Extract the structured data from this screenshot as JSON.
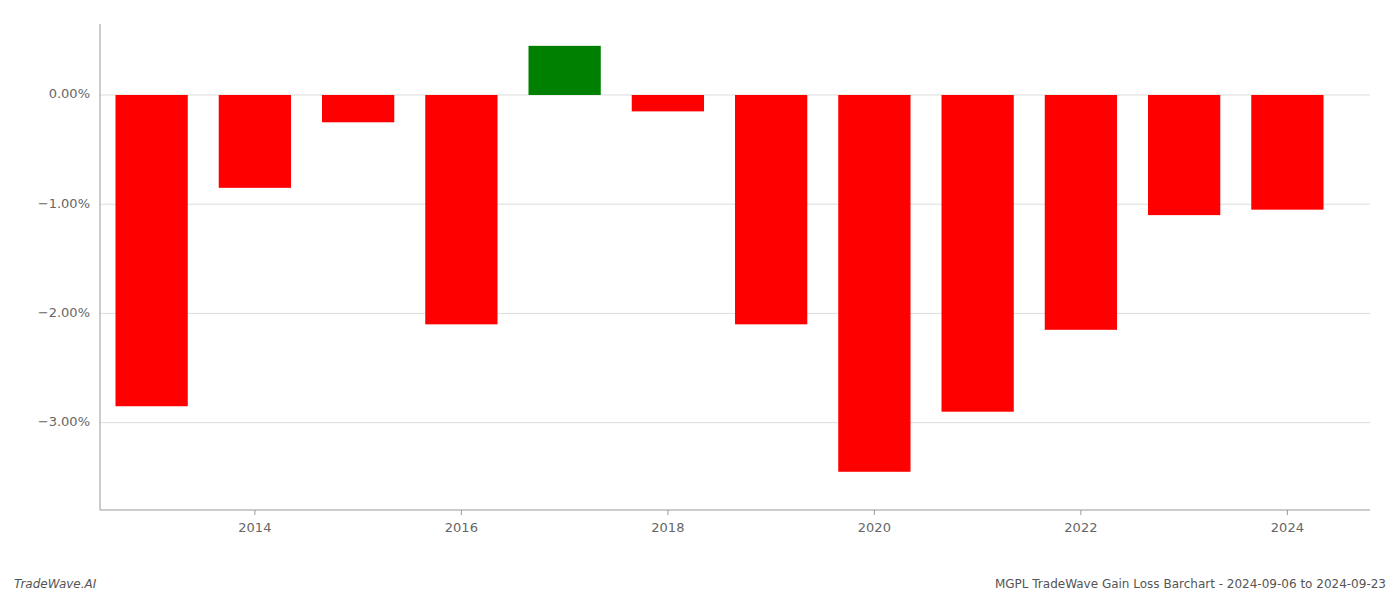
{
  "chart_data": {
    "type": "bar",
    "x": [
      2013,
      2014,
      2015,
      2016,
      2017,
      2018,
      2019,
      2020,
      2021,
      2022,
      2023,
      2024
    ],
    "values": [
      -2.85,
      -0.85,
      -0.25,
      -2.1,
      0.45,
      -0.15,
      -2.1,
      -3.45,
      -2.9,
      -2.15,
      -1.1,
      -1.05
    ],
    "colors": [
      "#ff0000",
      "#ff0000",
      "#ff0000",
      "#ff0000",
      "#008000",
      "#ff0000",
      "#ff0000",
      "#ff0000",
      "#ff0000",
      "#ff0000",
      "#ff0000",
      "#ff0000"
    ],
    "xlim": [
      2012.5,
      2024.8
    ],
    "xticks": [
      2014,
      2016,
      2018,
      2020,
      2022,
      2024
    ],
    "ylim": [
      -3.8,
      0.65
    ],
    "yticks": [
      {
        "value": 0.0,
        "label": "0.00%"
      },
      {
        "value": -1.0,
        "label": "−1.00%"
      },
      {
        "value": -2.0,
        "label": "−2.00%"
      },
      {
        "value": -3.0,
        "label": "−3.00%"
      }
    ],
    "grid": true,
    "annotations": [
      "TradeWave.AI",
      "MGPL TradeWave Gain Loss Barchart - 2024-09-06 to 2024-09-23"
    ]
  }
}
